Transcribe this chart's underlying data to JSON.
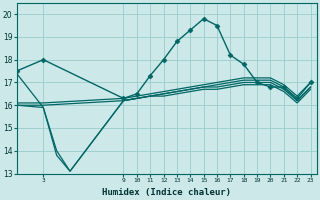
{
  "xlabel": "Humidex (Indice chaleur)",
  "background_color": "#cce8e8",
  "grid_color": "#99cccc",
  "line_color": "#006666",
  "xlim": [
    1,
    23.5
  ],
  "ylim": [
    13,
    20.5
  ],
  "yticks": [
    13,
    14,
    15,
    16,
    17,
    18,
    19,
    20
  ],
  "xtick_positions": [
    3,
    9,
    10,
    11,
    12,
    13,
    14,
    15,
    16,
    17,
    18,
    19,
    20,
    21,
    22,
    23
  ],
  "xtick_labels": [
    "3",
    "9",
    "10",
    "11",
    "12",
    "13",
    "14",
    "15",
    "16",
    "17",
    "18",
    "19",
    "20",
    "21",
    "22",
    "23"
  ],
  "lines": [
    {
      "x": [
        1,
        3,
        9,
        10,
        11,
        12,
        13,
        14,
        15,
        16,
        17,
        18,
        19,
        20,
        21,
        22,
        23
      ],
      "y": [
        17.5,
        18.0,
        16.3,
        16.5,
        17.3,
        18.0,
        18.8,
        19.3,
        19.8,
        19.5,
        18.2,
        17.8,
        17.0,
        16.8,
        16.8,
        16.3,
        17.0
      ],
      "marker": "D",
      "markersize": 2.5,
      "linewidth": 1.0
    },
    {
      "x": [
        1,
        3,
        9,
        10,
        11,
        12,
        13,
        14,
        15,
        16,
        17,
        18,
        19,
        20,
        21,
        22,
        23
      ],
      "y": [
        16.1,
        16.1,
        16.3,
        16.4,
        16.5,
        16.6,
        16.7,
        16.8,
        16.9,
        17.0,
        17.1,
        17.2,
        17.2,
        17.2,
        16.9,
        16.4,
        17.0
      ],
      "marker": null,
      "markersize": 0,
      "linewidth": 0.9
    },
    {
      "x": [
        1,
        3,
        9,
        10,
        11,
        12,
        13,
        14,
        15,
        16,
        17,
        18,
        19,
        20,
        21,
        22,
        23
      ],
      "y": [
        16.0,
        16.0,
        16.2,
        16.3,
        16.4,
        16.5,
        16.6,
        16.7,
        16.8,
        16.9,
        17.0,
        17.1,
        17.1,
        17.1,
        16.8,
        16.2,
        16.8
      ],
      "marker": null,
      "markersize": 0,
      "linewidth": 0.9
    },
    {
      "x": [
        1,
        3,
        4,
        5,
        9,
        10,
        11,
        12,
        13,
        14,
        15,
        16,
        17,
        18,
        19,
        20,
        21,
        22,
        23
      ],
      "y": [
        16.0,
        15.9,
        13.8,
        13.1,
        16.2,
        16.3,
        16.4,
        16.5,
        16.6,
        16.7,
        16.8,
        16.8,
        16.9,
        17.0,
        17.0,
        17.0,
        16.7,
        16.2,
        16.8
      ],
      "marker": null,
      "markersize": 0,
      "linewidth": 0.9
    },
    {
      "x": [
        1,
        3,
        4,
        5,
        9,
        10,
        11,
        12,
        13,
        14,
        15,
        16,
        17,
        18,
        19,
        20,
        21,
        22,
        23
      ],
      "y": [
        17.4,
        15.9,
        14.0,
        13.1,
        16.2,
        16.3,
        16.4,
        16.4,
        16.5,
        16.6,
        16.7,
        16.7,
        16.8,
        16.9,
        16.9,
        16.9,
        16.6,
        16.1,
        16.7
      ],
      "marker": null,
      "markersize": 0,
      "linewidth": 0.9
    }
  ]
}
